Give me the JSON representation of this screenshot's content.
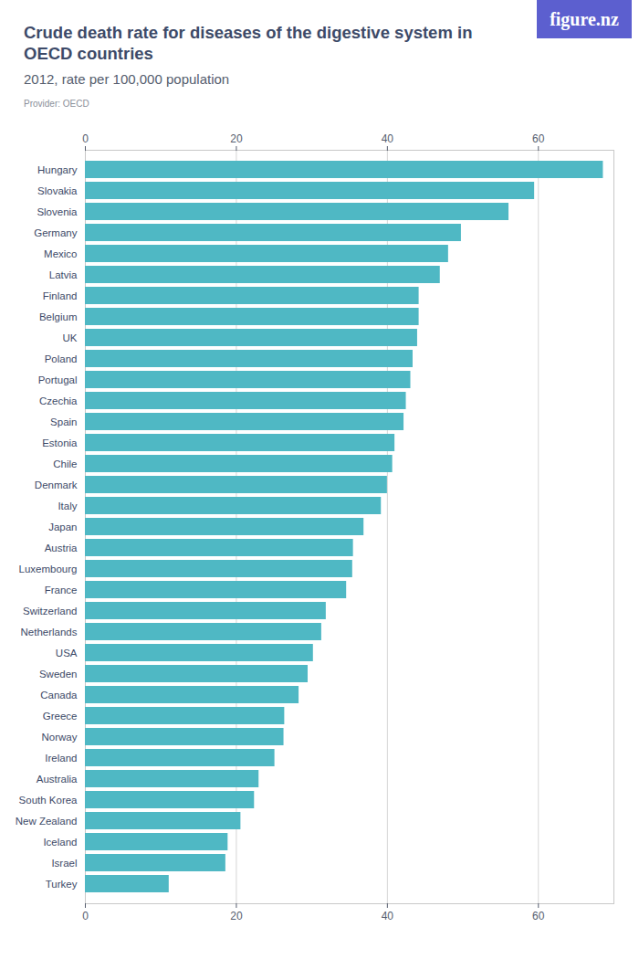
{
  "chart_data": {
    "type": "bar",
    "orientation": "horizontal",
    "title": "Crude death rate for diseases of the digestive system in OECD countries",
    "subtitle": "2012, rate per 100,000 population",
    "caption": "Provider: OECD",
    "brand": "figure.nz",
    "categories": [
      "Hungary",
      "Slovakia",
      "Slovenia",
      "Germany",
      "Mexico",
      "Latvia",
      "Finland",
      "Belgium",
      "UK",
      "Poland",
      "Portugal",
      "Czechia",
      "Spain",
      "Estonia",
      "Chile",
      "Denmark",
      "Italy",
      "Japan",
      "Austria",
      "Luxembourg",
      "France",
      "Switzerland",
      "Netherlands",
      "USA",
      "Sweden",
      "Canada",
      "Greece",
      "Norway",
      "Ireland",
      "Australia",
      "South Korea",
      "New Zealand",
      "Iceland",
      "Israel",
      "Turkey"
    ],
    "values": [
      68.6,
      59.5,
      56.1,
      49.8,
      48.1,
      47.0,
      44.2,
      44.2,
      44.0,
      43.4,
      43.1,
      42.5,
      42.2,
      41.0,
      40.7,
      40.0,
      39.2,
      36.9,
      35.5,
      35.4,
      34.6,
      31.9,
      31.3,
      30.2,
      29.5,
      28.3,
      26.4,
      26.3,
      25.1,
      23.0,
      22.4,
      20.6,
      18.9,
      18.6,
      11.1
    ],
    "color": "#4fb8c4",
    "xlim": [
      0,
      70
    ],
    "xticks": [
      0,
      20,
      40,
      60
    ],
    "grid": true
  }
}
